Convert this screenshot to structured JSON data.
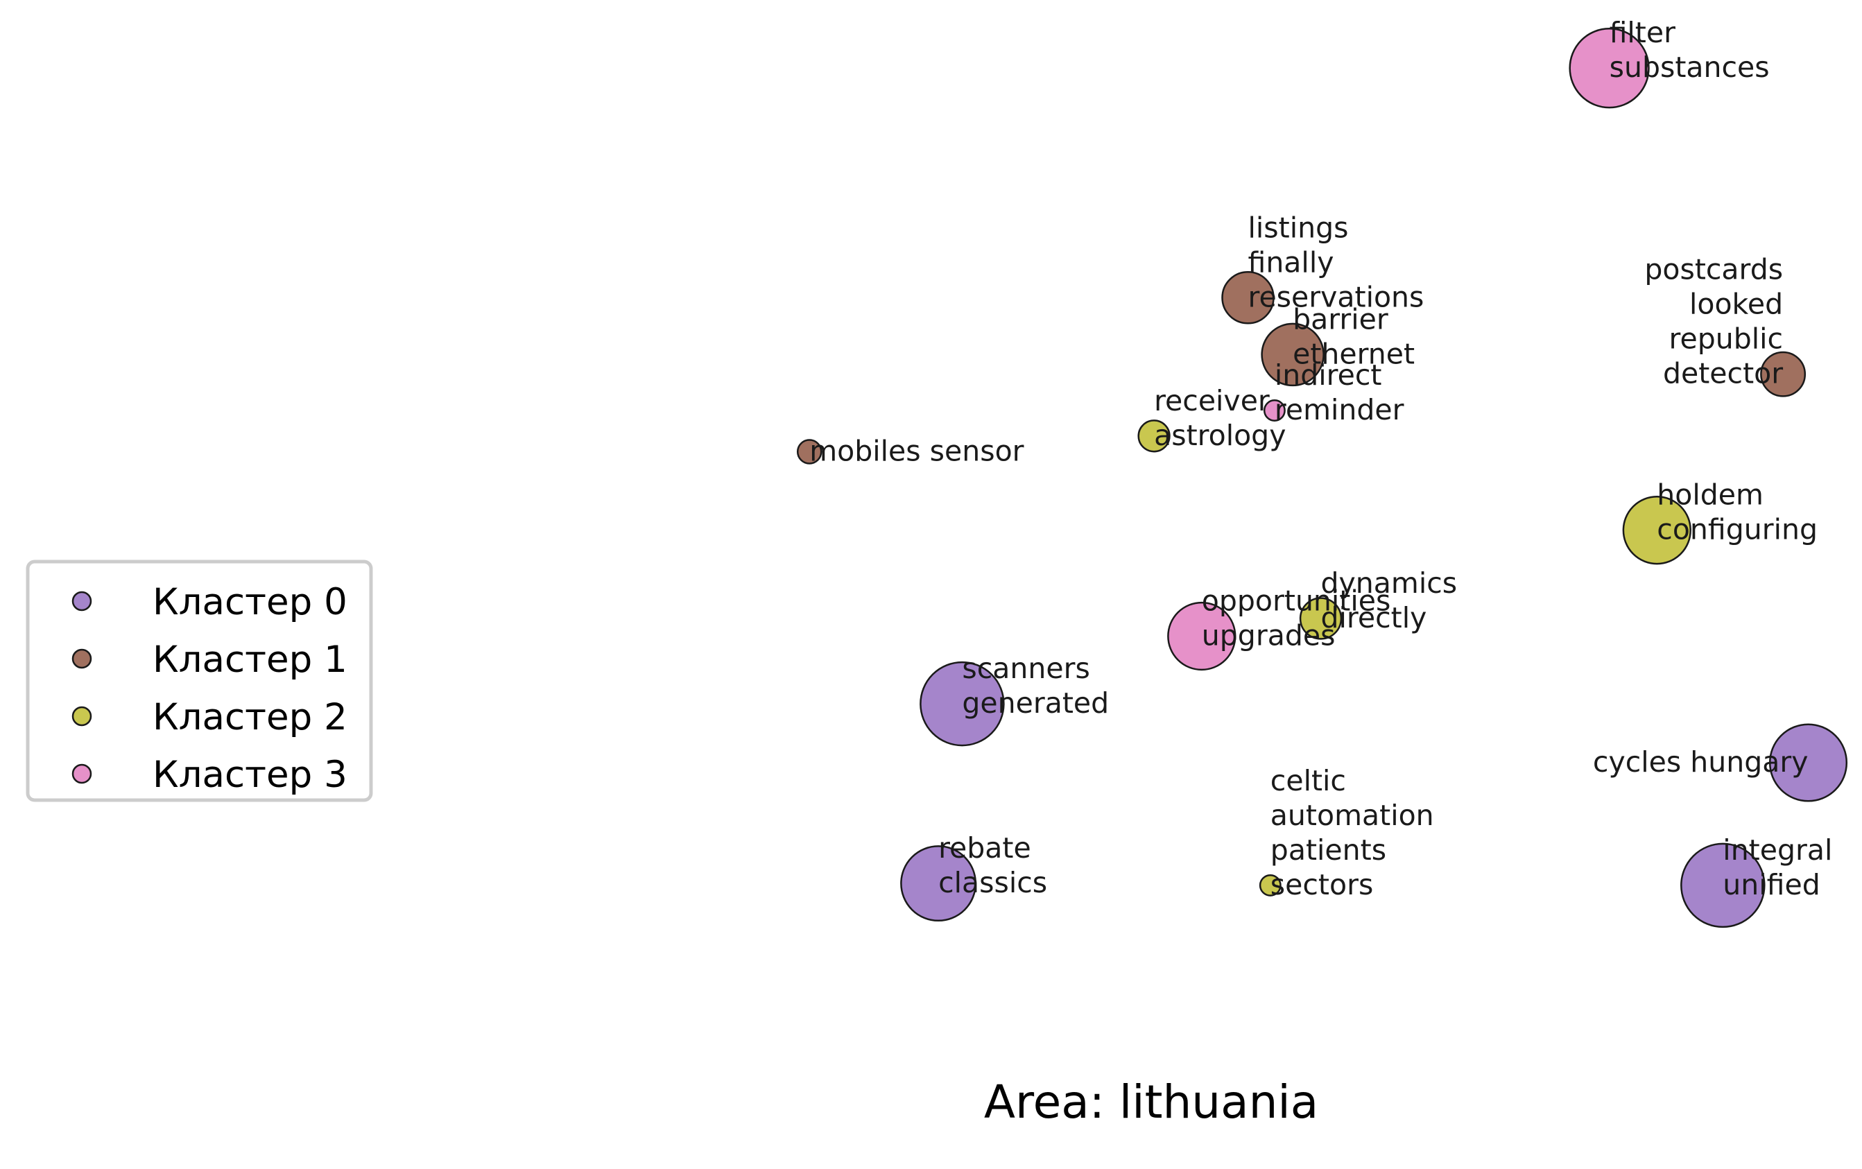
{
  "chart_data": {
    "type": "scatter",
    "title": "Area: lithuania",
    "xlabel": "",
    "ylabel": "",
    "xlim": [
      0,
      100
    ],
    "ylim": [
      0,
      100
    ],
    "axes_visible": false,
    "grid": false,
    "legend": {
      "placement": "center-left",
      "entries": [
        "Кластер 0",
        "Кластер 1",
        "Кластер 2",
        "Кластер 3"
      ]
    },
    "colors": {
      "Кластер 0": "#a585cb",
      "Кластер 1": "#a0705f",
      "Кластер 2": "#c9c74f",
      "Кластер 3": "#e691c9"
    },
    "series": [
      {
        "name": "Кластер 0",
        "points": [
          {
            "label": "scanners\ngenerated",
            "x": 37.0,
            "y": 32.5,
            "size": 100,
            "align": "start"
          },
          {
            "label": "rebate\nclassics",
            "x": 35.3,
            "y": 14.2,
            "size": 80,
            "align": "start"
          },
          {
            "label": "cycles hungary",
            "x": 97.4,
            "y": 26.5,
            "size": 85,
            "align": "end"
          },
          {
            "label": "integral\nunified",
            "x": 91.3,
            "y": 14.0,
            "size": 100,
            "align": "start"
          }
        ]
      },
      {
        "name": "Кластер 1",
        "points": [
          {
            "label": "listings\nfinally\nreservations",
            "x": 57.4,
            "y": 73.9,
            "size": 38,
            "align": "start"
          },
          {
            "label": "barrier\nethernet",
            "x": 60.6,
            "y": 68.1,
            "size": 55,
            "align": "start"
          },
          {
            "label": "postcards\nlooked\nrepublic\ndetector",
            "x": 95.6,
            "y": 66.1,
            "size": 28,
            "align": "end"
          },
          {
            "label": "mobiles sensor",
            "x": 26.1,
            "y": 58.2,
            "size": 8,
            "align": "start"
          }
        ]
      },
      {
        "name": "Кластер 2",
        "points": [
          {
            "label": "receiver\nastrology",
            "x": 50.7,
            "y": 59.8,
            "size": 14,
            "align": "start"
          },
          {
            "label": "holdem\nconfiguring",
            "x": 86.6,
            "y": 50.2,
            "size": 65,
            "align": "start"
          },
          {
            "label": "dynamics\ndirectly",
            "x": 62.6,
            "y": 41.2,
            "size": 24,
            "align": "start"
          },
          {
            "label": "celtic\nautomation\npatients\nsectors",
            "x": 59.0,
            "y": 14.0,
            "size": 6,
            "align": "start"
          }
        ]
      },
      {
        "name": "Кластер 3",
        "points": [
          {
            "label": "filter\nsubstances",
            "x": 83.2,
            "y": 97.3,
            "size": 90,
            "align": "start"
          },
          {
            "label": "indirect\nreminder",
            "x": 59.3,
            "y": 62.4,
            "size": 6,
            "align": "start"
          },
          {
            "label": "opportunities\nupgrades",
            "x": 54.1,
            "y": 39.4,
            "size": 65,
            "align": "start"
          }
        ]
      }
    ]
  }
}
